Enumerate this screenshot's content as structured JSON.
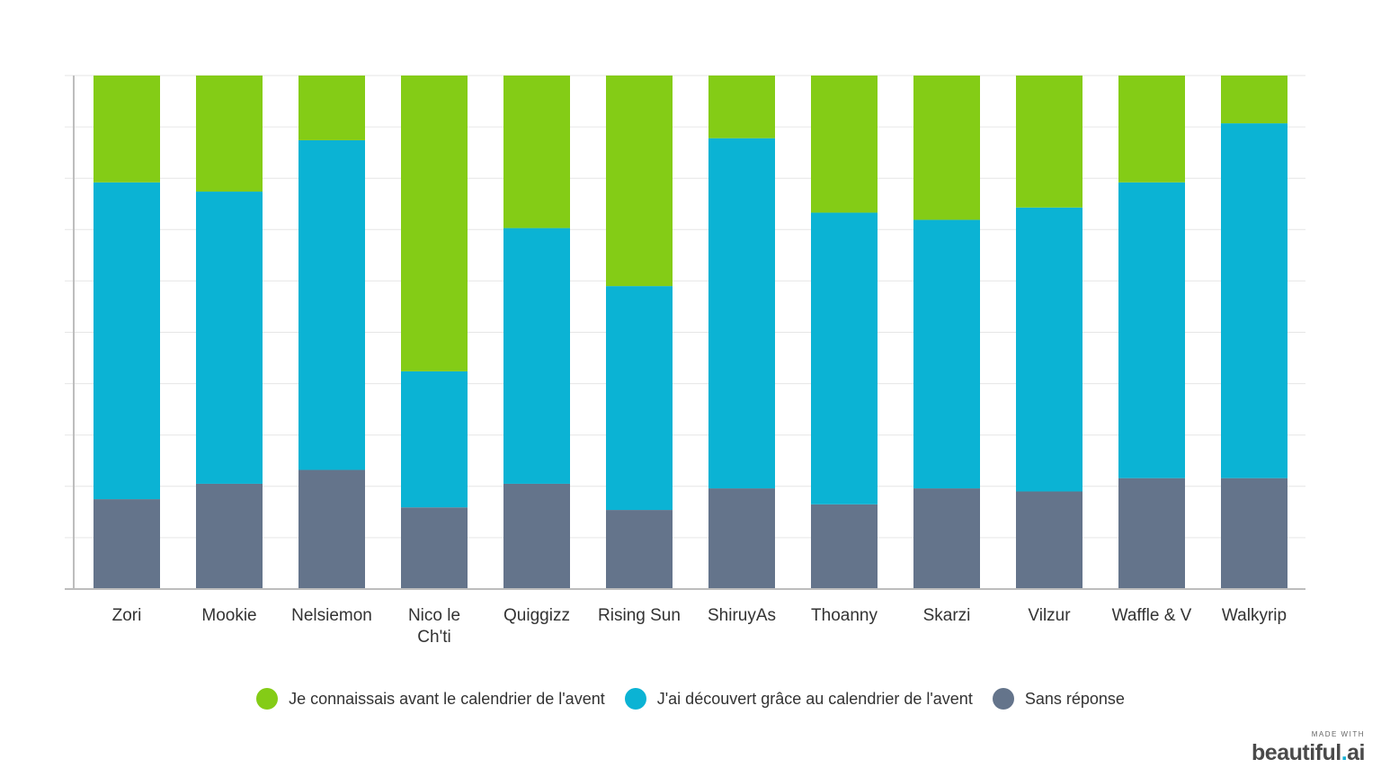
{
  "chart_data": {
    "type": "bar",
    "stacked": true,
    "ylim": [
      0,
      100
    ],
    "grid": true,
    "legend_position": "bottom",
    "categories": [
      "Zori",
      "Mookie",
      "Nelsiemon",
      "Nico le Ch'ti",
      "Quiggizz",
      "Rising Sun",
      "ShiruyAs",
      "Thoanny",
      "Skarzi",
      "Vilzur",
      "Waffle & V",
      "Walkyrip"
    ],
    "series": [
      {
        "name": "Sans réponse",
        "color": "#64748b",
        "values": [
          17.5,
          20.5,
          23.2,
          15.9,
          20.5,
          15.4,
          19.6,
          16.5,
          19.6,
          19.0,
          21.6,
          21.6
        ]
      },
      {
        "name": "J'ai découvert grâce au calendrier de l'avent",
        "color": "#0bb3d4",
        "values": [
          61.7,
          56.9,
          64.2,
          26.5,
          49.8,
          43.6,
          68.2,
          56.8,
          52.3,
          55.3,
          57.6,
          69.1
        ]
      },
      {
        "name": "Je connaissais avant le calendrier de l'avent",
        "color": "#84cc16",
        "values": [
          20.8,
          22.6,
          12.6,
          57.6,
          29.7,
          41.0,
          12.2,
          26.7,
          28.1,
          25.7,
          20.8,
          9.3
        ]
      }
    ]
  },
  "legend": [
    {
      "label": "Je connaissais avant le calendrier de l'avent",
      "color": "#84cc16"
    },
    {
      "label": "J'ai découvert grâce au calendrier de l'avent",
      "color": "#0bb3d4"
    },
    {
      "label": "Sans réponse",
      "color": "#64748b"
    }
  ],
  "branding": {
    "tagline": "MADE WITH",
    "name": "beautiful",
    "dot": ".",
    "suffix": "ai"
  }
}
